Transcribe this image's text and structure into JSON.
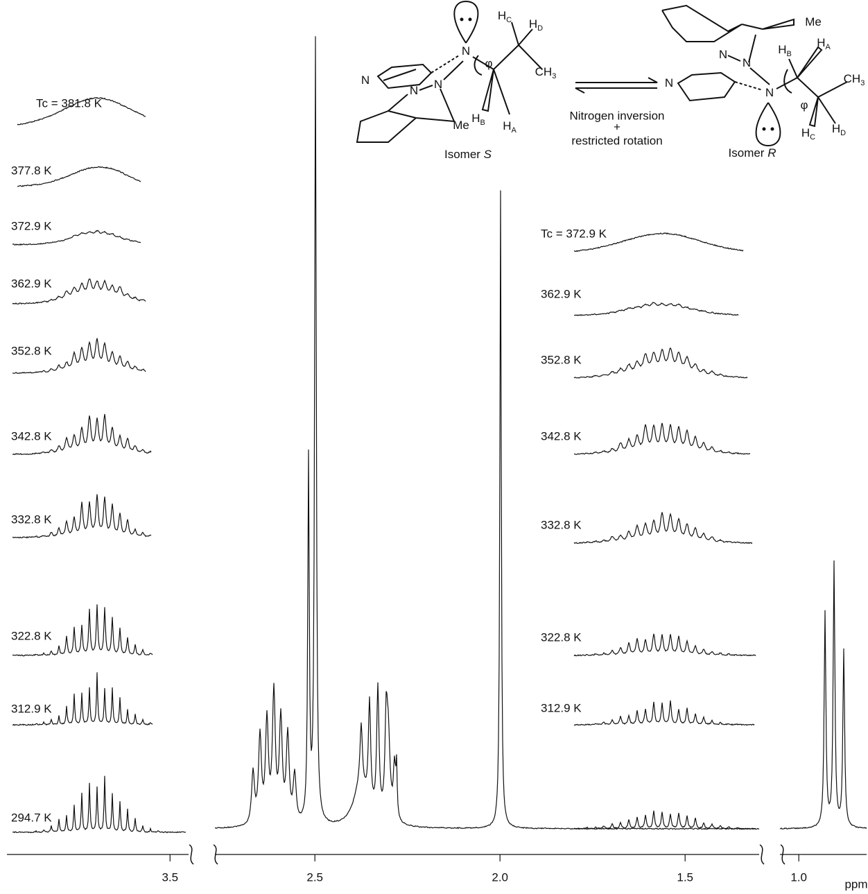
{
  "axis": {
    "segments": [
      {
        "xlim": [
          3.94,
          3.45
        ],
        "ticks": [
          3.5
        ]
      },
      {
        "xlim": [
          2.77,
          1.3
        ],
        "ticks": [
          2.5,
          {
            "value": 2,
            "label": "2.0"
          },
          1.5
        ]
      },
      {
        "xlim": [
          1.05,
          0.82
        ],
        "ticks": [
          {
            "value": 1,
            "label": "1.0"
          }
        ]
      }
    ],
    "unit": "ppm"
  },
  "left_panel": {
    "labels": [
      "Tc = 381.8 K",
      "377.8 K",
      "372.9 K",
      "362.9 K",
      "352.8 K",
      "342.8 K",
      "332.8 K",
      "322.8 K",
      "312.9 K",
      "294.7 K"
    ]
  },
  "right_panel": {
    "labels": [
      "Tc = 372.9 K",
      "362.9 K",
      "352.8 K",
      "342.8 K",
      "332.8 K",
      "322.8 K",
      "312.9 K"
    ]
  },
  "scheme": {
    "isomer_s": {
      "text": "Isomer ",
      "italic": "S"
    },
    "isomer_r": {
      "text": "Isomer ",
      "italic": "R"
    },
    "arrow_text": [
      "Nitrogen inversion",
      "+",
      "restricted rotation"
    ],
    "atoms": [
      {
        "text": "N"
      },
      {
        "text": "N"
      },
      {
        "text": "N"
      },
      {
        "text": "N"
      },
      {
        "text": "Me"
      },
      {
        "text": "φ"
      },
      {
        "text": "H",
        "sub": "C"
      },
      {
        "text": "H",
        "sub": "D"
      },
      {
        "text": "CH",
        "sub": "3"
      },
      {
        "text": "H",
        "sub": "B"
      },
      {
        "text": "H",
        "sub": "A"
      },
      {
        "text": "Me"
      },
      {
        "text": "N"
      },
      {
        "text": "N"
      },
      {
        "text": "N"
      },
      {
        "text": "N"
      },
      {
        "text": "φ"
      },
      {
        "text": "H",
        "sub": "B"
      },
      {
        "text": "H",
        "sub": "A"
      },
      {
        "text": "CH",
        "sub": "3"
      },
      {
        "text": "H",
        "sub": "C"
      },
      {
        "text": "H",
        "sub": "D"
      }
    ]
  }
}
